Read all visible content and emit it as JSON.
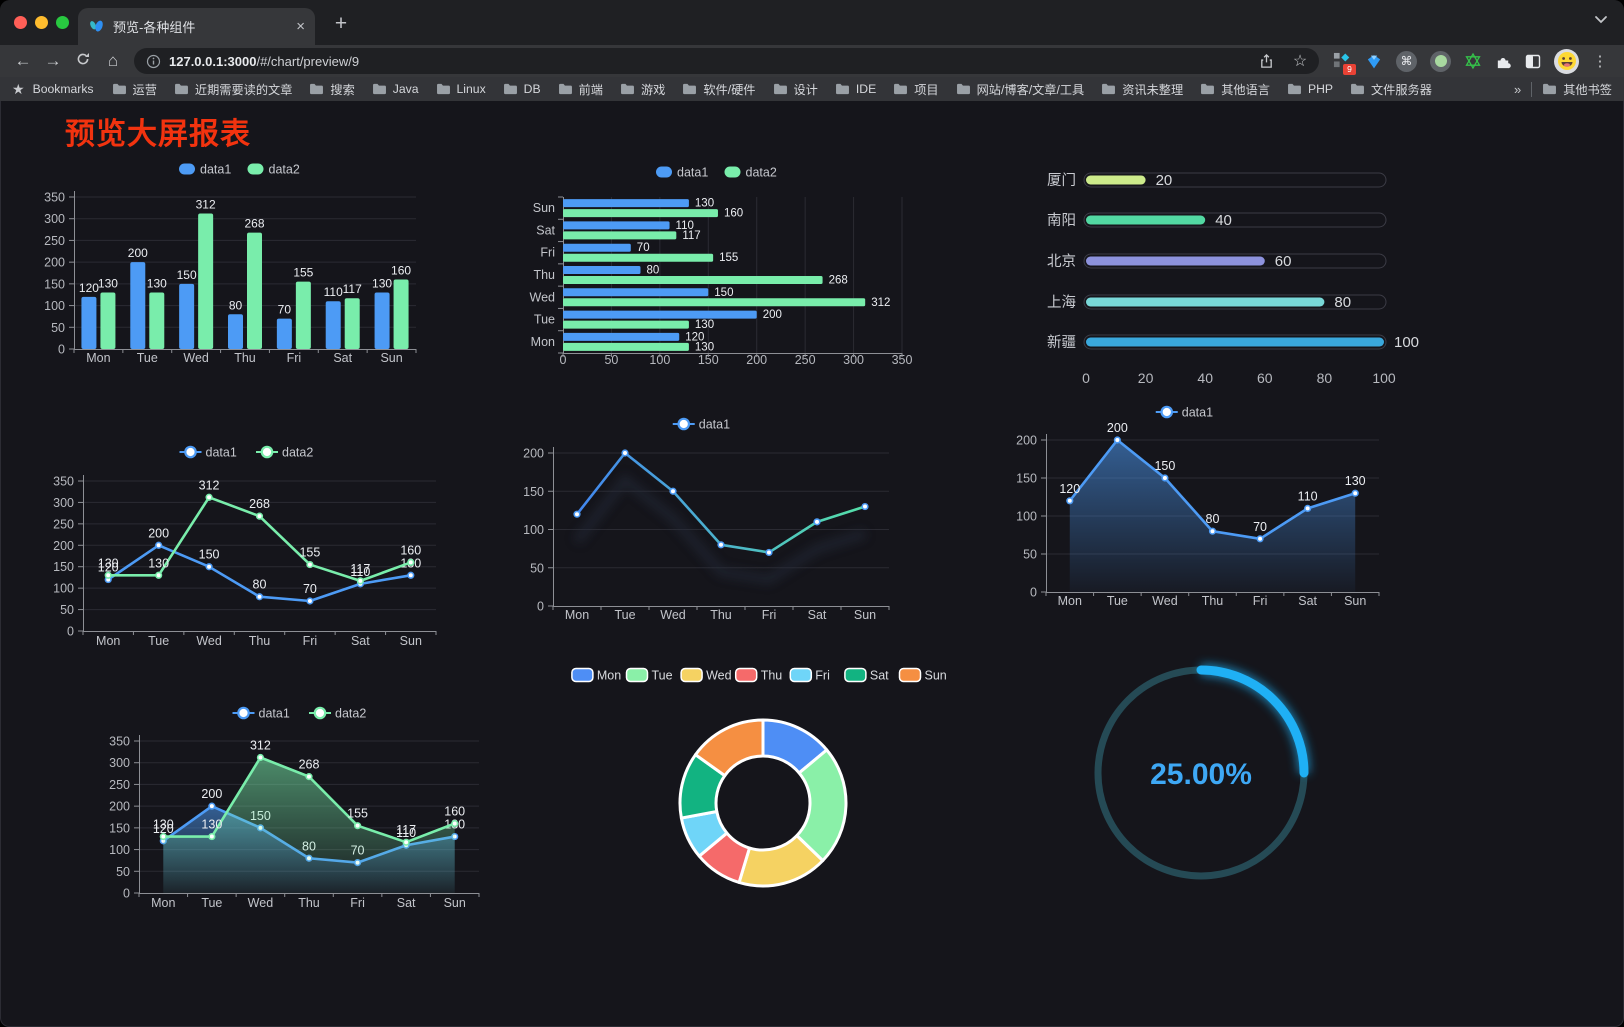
{
  "browser": {
    "tab": {
      "title": "预览-各种组件"
    },
    "url": {
      "host": "127.0.0.1:3000",
      "path": "/#/chart/preview/9"
    },
    "icons": {
      "back": "←",
      "forward": "→",
      "home": "⌂",
      "menu": "⋮",
      "command": "⌘",
      "star": "☆",
      "bookmarks_star": "★",
      "close": "×",
      "new_tab": "+",
      "overflow": "»"
    },
    "extension_badge": "9",
    "bookmarks_label": "Bookmarks",
    "bookmarks": [
      "运营",
      "近期需要读的文章",
      "搜索",
      "Java",
      "Linux",
      "DB",
      "前端",
      "游戏",
      "软件/硬件",
      "设计",
      "IDE",
      "项目",
      "网站/博客/文章/工具",
      "资讯未整理",
      "其他语言",
      "PHP",
      "文件服务器"
    ],
    "other_bookmarks": "其他书签"
  },
  "page": {
    "title": "预览大屏报表",
    "title_color": "#f2330f"
  },
  "chart_data": [
    {
      "id": "bar-vertical",
      "type": "bar",
      "categories": [
        "Mon",
        "Tue",
        "Wed",
        "Thu",
        "Fri",
        "Sat",
        "Sun"
      ],
      "series": [
        {
          "name": "data1",
          "color": "#4d9bf5",
          "values": [
            120,
            200,
            150,
            80,
            70,
            110,
            130
          ]
        },
        {
          "name": "data2",
          "color": "#79edab",
          "values": [
            130,
            130,
            312,
            268,
            155,
            117,
            160
          ]
        }
      ],
      "ylim": [
        0,
        350
      ],
      "yticks": [
        0,
        50,
        100,
        150,
        200,
        250,
        300,
        350
      ],
      "show_values": true,
      "legend_position": "top",
      "grid": true
    },
    {
      "id": "bar-horizontal",
      "type": "bar",
      "orientation": "horizontal",
      "categories": [
        "Mon",
        "Tue",
        "Wed",
        "Thu",
        "Fri",
        "Sat",
        "Sun"
      ],
      "display_top_to_bottom": [
        "Sun",
        "Sat",
        "Fri",
        "Thu",
        "Wed",
        "Tue",
        "Mon"
      ],
      "series": [
        {
          "name": "data1",
          "color": "#4d9bf5",
          "values": [
            120,
            200,
            150,
            80,
            70,
            110,
            130
          ]
        },
        {
          "name": "data2",
          "color": "#79edab",
          "values": [
            130,
            130,
            312,
            268,
            155,
            117,
            160
          ]
        }
      ],
      "xlim": [
        0,
        350
      ],
      "xticks": [
        0,
        50,
        100,
        150,
        200,
        250,
        300,
        350
      ],
      "show_values": true,
      "legend_position": "top",
      "grid": true
    },
    {
      "id": "progress-bars",
      "type": "bar",
      "subtype": "progress",
      "items": [
        {
          "label": "厦门",
          "value": 20,
          "color": "#cdeb8b"
        },
        {
          "label": "南阳",
          "value": 40,
          "color": "#52d8a2"
        },
        {
          "label": "北京",
          "value": 60,
          "color": "#8d92dd"
        },
        {
          "label": "上海",
          "value": 80,
          "color": "#79d8d8"
        },
        {
          "label": "新疆",
          "value": 100,
          "color": "#3aa8dd"
        }
      ],
      "xlim": [
        0,
        100
      ],
      "xticks": [
        0,
        20,
        40,
        60,
        80,
        100
      ],
      "grid": false
    },
    {
      "id": "line-dual",
      "type": "line",
      "categories": [
        "Mon",
        "Tue",
        "Wed",
        "Thu",
        "Fri",
        "Sat",
        "Sun"
      ],
      "series": [
        {
          "name": "data1",
          "color": "#4d9bf5",
          "values": [
            120,
            200,
            150,
            80,
            70,
            110,
            130
          ]
        },
        {
          "name": "data2",
          "color": "#79edab",
          "values": [
            130,
            130,
            312,
            268,
            155,
            117,
            160
          ]
        }
      ],
      "ylim": [
        0,
        350
      ],
      "yticks": [
        0,
        50,
        100,
        150,
        200,
        250,
        300,
        350
      ],
      "show_values": true,
      "legend_position": "top",
      "grid": true
    },
    {
      "id": "line-gradient",
      "type": "line",
      "categories": [
        "Mon",
        "Tue",
        "Wed",
        "Thu",
        "Fri",
        "Sat",
        "Sun"
      ],
      "series": [
        {
          "name": "data1",
          "color": "#4d9bf5",
          "color_gradient": [
            "#4286f0",
            "#55e0a8"
          ],
          "values": [
            120,
            200,
            150,
            80,
            70,
            110,
            130
          ]
        }
      ],
      "ylim": [
        0,
        200
      ],
      "yticks": [
        0,
        50,
        100,
        150,
        200
      ],
      "show_values": false,
      "shadow": true,
      "legend_position": "top",
      "grid": true
    },
    {
      "id": "area-single",
      "type": "area",
      "categories": [
        "Mon",
        "Tue",
        "Wed",
        "Thu",
        "Fri",
        "Sat",
        "Sun"
      ],
      "series": [
        {
          "name": "data1",
          "color": "#4d9bf5",
          "values": [
            120,
            200,
            150,
            80,
            70,
            110,
            130
          ]
        }
      ],
      "ylim": [
        0,
        200
      ],
      "yticks": [
        0,
        50,
        100,
        150,
        200
      ],
      "show_values": true,
      "legend_position": "top",
      "grid": true
    },
    {
      "id": "area-dual",
      "type": "area",
      "categories": [
        "Mon",
        "Tue",
        "Wed",
        "Thu",
        "Fri",
        "Sat",
        "Sun"
      ],
      "series": [
        {
          "name": "data1",
          "color": "#4d9bf5",
          "values": [
            120,
            200,
            150,
            80,
            70,
            110,
            130
          ]
        },
        {
          "name": "data2",
          "color": "#79edab",
          "values": [
            130,
            130,
            312,
            268,
            155,
            117,
            160
          ]
        }
      ],
      "ylim": [
        0,
        350
      ],
      "yticks": [
        0,
        50,
        100,
        150,
        200,
        250,
        300,
        350
      ],
      "show_values": true,
      "legend_position": "top",
      "grid": true
    },
    {
      "id": "donut",
      "type": "pie",
      "inner_radius_ratio": 0.57,
      "slices": [
        {
          "label": "Mon",
          "value": 120,
          "color": "#4e8ef5"
        },
        {
          "label": "Tue",
          "value": 200,
          "color": "#8af0a8"
        },
        {
          "label": "Wed",
          "value": 150,
          "color": "#f5d262"
        },
        {
          "label": "Thu",
          "value": 80,
          "color": "#f56a6a"
        },
        {
          "label": "Fri",
          "value": 70,
          "color": "#6fd5f8"
        },
        {
          "label": "Sat",
          "value": 110,
          "color": "#12b381"
        },
        {
          "label": "Sun",
          "value": 130,
          "color": "#f58f42"
        }
      ],
      "legend_position": "top"
    },
    {
      "id": "gauge",
      "type": "gauge",
      "value": 25,
      "max": 100,
      "display": "25.00%",
      "color": "#1fb0f5",
      "track_color": "#254a55",
      "text_color": "#3ea8f5"
    }
  ]
}
